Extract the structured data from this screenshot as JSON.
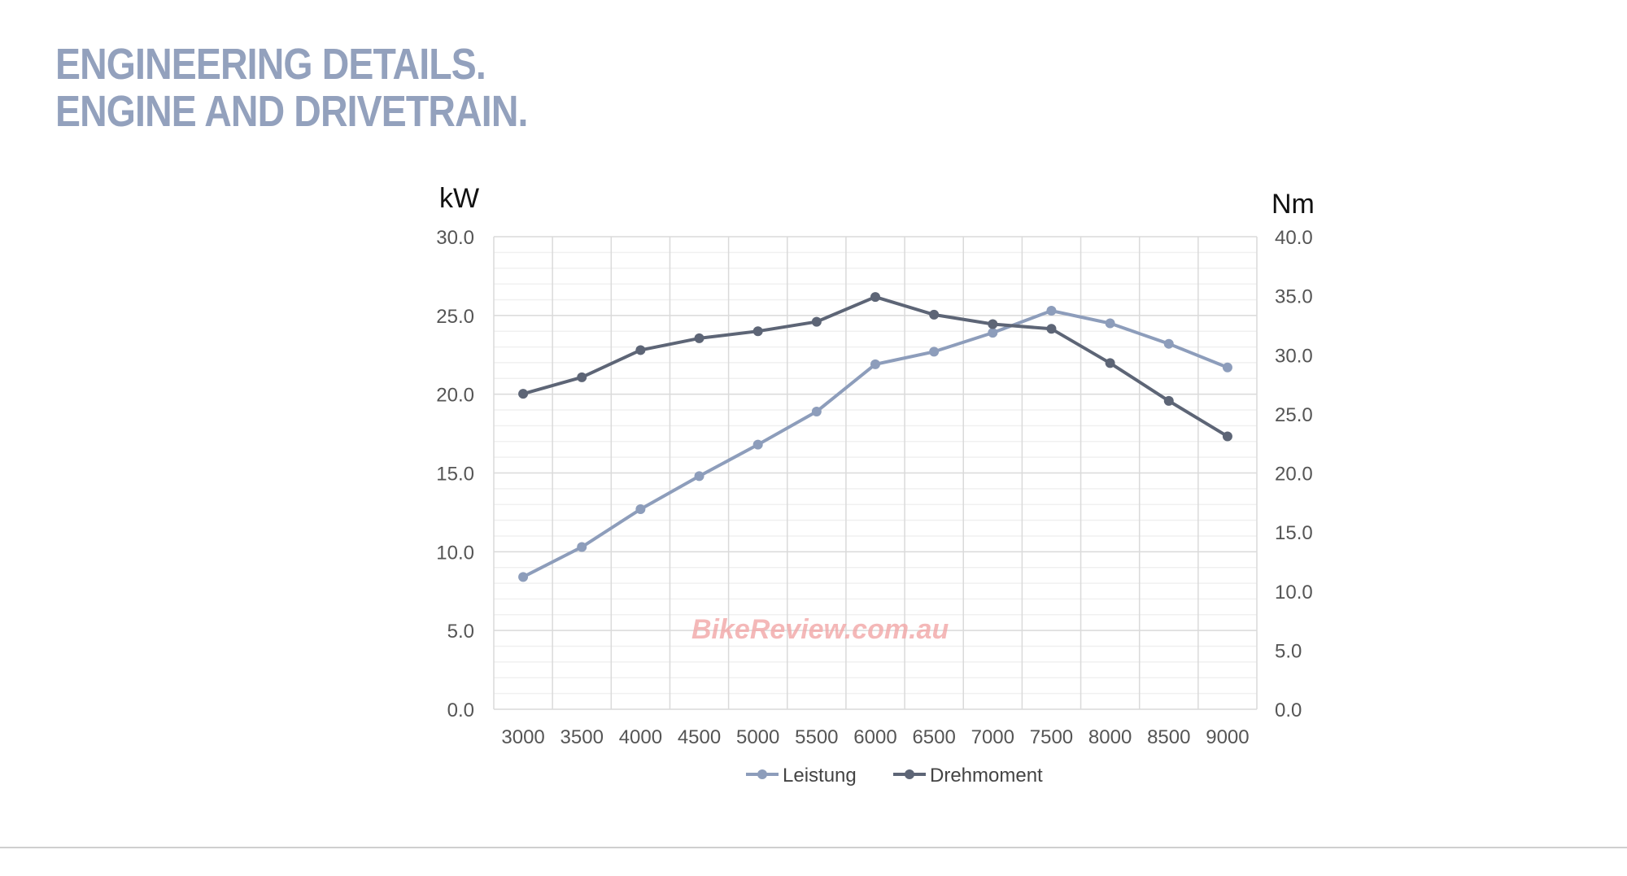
{
  "title": {
    "line1": "ENGINEERING DETAILS.",
    "line2": "ENGINE AND DRIVETRAIN."
  },
  "watermark": "BikeReview.com.au",
  "chart_data": {
    "type": "line",
    "title": "",
    "xlabel": "",
    "ylabel": "kW",
    "y2label": "Nm",
    "categories": [
      "3000",
      "3500",
      "4000",
      "4500",
      "5000",
      "5500",
      "6000",
      "6500",
      "7000",
      "7500",
      "8000",
      "8500",
      "9000"
    ],
    "ylim": [
      0,
      30
    ],
    "y2lim": [
      0,
      40
    ],
    "yticks": [
      "0.0",
      "5.0",
      "10.0",
      "15.0",
      "20.0",
      "25.0",
      "30.0"
    ],
    "y2ticks": [
      "0.0",
      "5.0",
      "10.0",
      "15.0",
      "20.0",
      "25.0",
      "30.0",
      "35.0",
      "40.0"
    ],
    "grid": true,
    "legend_position": "bottom",
    "series": [
      {
        "name": "Leistung",
        "axis": "left",
        "color": "#8d9dbb",
        "values": [
          8.4,
          10.3,
          12.7,
          14.8,
          16.8,
          18.9,
          21.9,
          22.7,
          23.9,
          25.3,
          24.5,
          23.2,
          21.7
        ]
      },
      {
        "name": "Drehmoment",
        "axis": "right",
        "color": "#5d6576",
        "values": [
          26.7,
          28.1,
          30.4,
          31.4,
          32.0,
          32.8,
          34.9,
          33.4,
          32.6,
          32.2,
          29.3,
          26.1,
          23.1
        ]
      }
    ]
  }
}
